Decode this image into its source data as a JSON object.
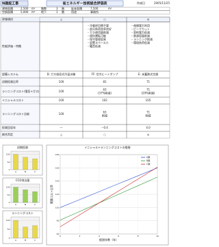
{
  "header": {
    "company": "N建設工事",
    "title": "省エネルギー技術総合評価表",
    "date_label": "作成日",
    "date": "2005/11/25"
  },
  "info": [
    [
      "建物面積",
      "2,500",
      "m²",
      "階数",
      "3",
      "階",
      "延床面積",
      "7,500",
      "m²"
    ],
    [
      "空調面積",
      "5,000",
      "m²",
      "地下",
      "1",
      "階",
      "用途",
      "事務所"
    ]
  ],
  "table": {
    "corner": "評価項目",
    "columns": [
      "△",
      "○",
      "◎"
    ],
    "rows": [
      {
        "label": "性能評価・特徴",
        "cells": [
          [],
          [
            "・冷暖房切替不要",
            "・部分負荷効率良好",
            "・ガス使用量削減",
            "・個別運転可能",
            "・保守管理容易",
            "・設置スペース小",
            "・騒音低減"
          ],
          [
            "・夜間電力利用",
            "・ピークカット",
            "・契約電力低減",
            "・熱源容量削減",
            "・ランニング削減",
            "・環境負荷低減"
          ]
        ]
      },
      {
        "label": "設備システム",
        "cells": [
          [
            "B: ガス吸収式冷温水機"
          ],
          [
            "FF: 空冷ヒートポンプ"
          ],
          [
            "E: 氷蓄熱式空調"
          ]
        ]
      },
      {
        "label": "初期投資比率",
        "cells": [
          [
            "100"
          ],
          [
            "81"
          ],
          [
            "71"
          ]
        ]
      },
      {
        "label": "ランニングコスト(電気+ガス)",
        "cells": [
          [
            "100"
          ],
          [
            "63",
            "(37%削減)"
          ],
          [
            "71",
            "(29%削減)"
          ]
        ]
      },
      {
        "label": "イニシャルコスト",
        "cells": [
          [
            "100"
          ],
          [
            "102"
          ],
          [
            "105"
          ]
        ]
      },
      {
        "label": "ランニングコスト比較",
        "cells": [
          [
            "100"
          ],
          [
            "63",
            "削減"
          ],
          [
            "71",
            "削減"
          ]
        ]
      },
      {
        "label": "投資回収年",
        "cells": [
          [
            "―"
          ],
          [
            "−0.4"
          ],
          [
            "4.0"
          ]
        ]
      },
      {
        "label": "総合判定",
        "cells": [
          [
            "△"
          ],
          [
            "○"
          ],
          [
            "◎"
          ]
        ]
      }
    ]
  },
  "chart_data": [
    {
      "type": "bar",
      "title": "初期投資",
      "categories": [
        "A",
        "B",
        "C"
      ],
      "values": [
        100,
        81,
        71
      ],
      "color": "#e8d84a",
      "ylim": [
        0,
        120
      ],
      "yticks": [
        0,
        50,
        100
      ]
    },
    {
      "type": "bar",
      "title": "CO2排出量",
      "categories": [
        "A",
        "B",
        "C"
      ],
      "values": [
        100,
        83,
        71
      ],
      "color": "#9bcf5a",
      "ylim": [
        0,
        120
      ],
      "yticks": [
        0,
        50,
        100
      ]
    },
    {
      "type": "bar",
      "title": "ランニングコスト",
      "categories": [
        "A",
        "B",
        "C"
      ],
      "values": [
        100,
        63,
        71
      ],
      "color": "#e8d84a",
      "ylim": [
        0,
        120
      ],
      "yticks": [
        0,
        50,
        100
      ]
    },
    {
      "type": "line",
      "title": "イニシャル+ランニングコストの推移",
      "x_label": "経過年数（年）",
      "y_label": "累積コスト比率",
      "x": [
        0,
        2,
        4,
        6,
        8,
        10
      ],
      "xlim": [
        0,
        10
      ],
      "xticks": [
        0,
        2,
        4,
        6,
        8,
        10
      ],
      "ylim": [
        60,
        180
      ],
      "yticks": [
        60,
        80,
        100,
        120,
        140,
        160,
        180
      ],
      "series": [
        {
          "name": "A案",
          "color": "#2a4fd0",
          "values": [
            100,
            112,
            124,
            136,
            148,
            160
          ]
        },
        {
          "name": "B案",
          "color": "#2e9a3a",
          "values": [
            81,
            94,
            107,
            120,
            133,
            146
          ]
        },
        {
          "name": "C案",
          "color": "#d02a2a",
          "values": [
            71,
            89,
            107,
            125,
            143,
            161
          ]
        }
      ]
    }
  ]
}
